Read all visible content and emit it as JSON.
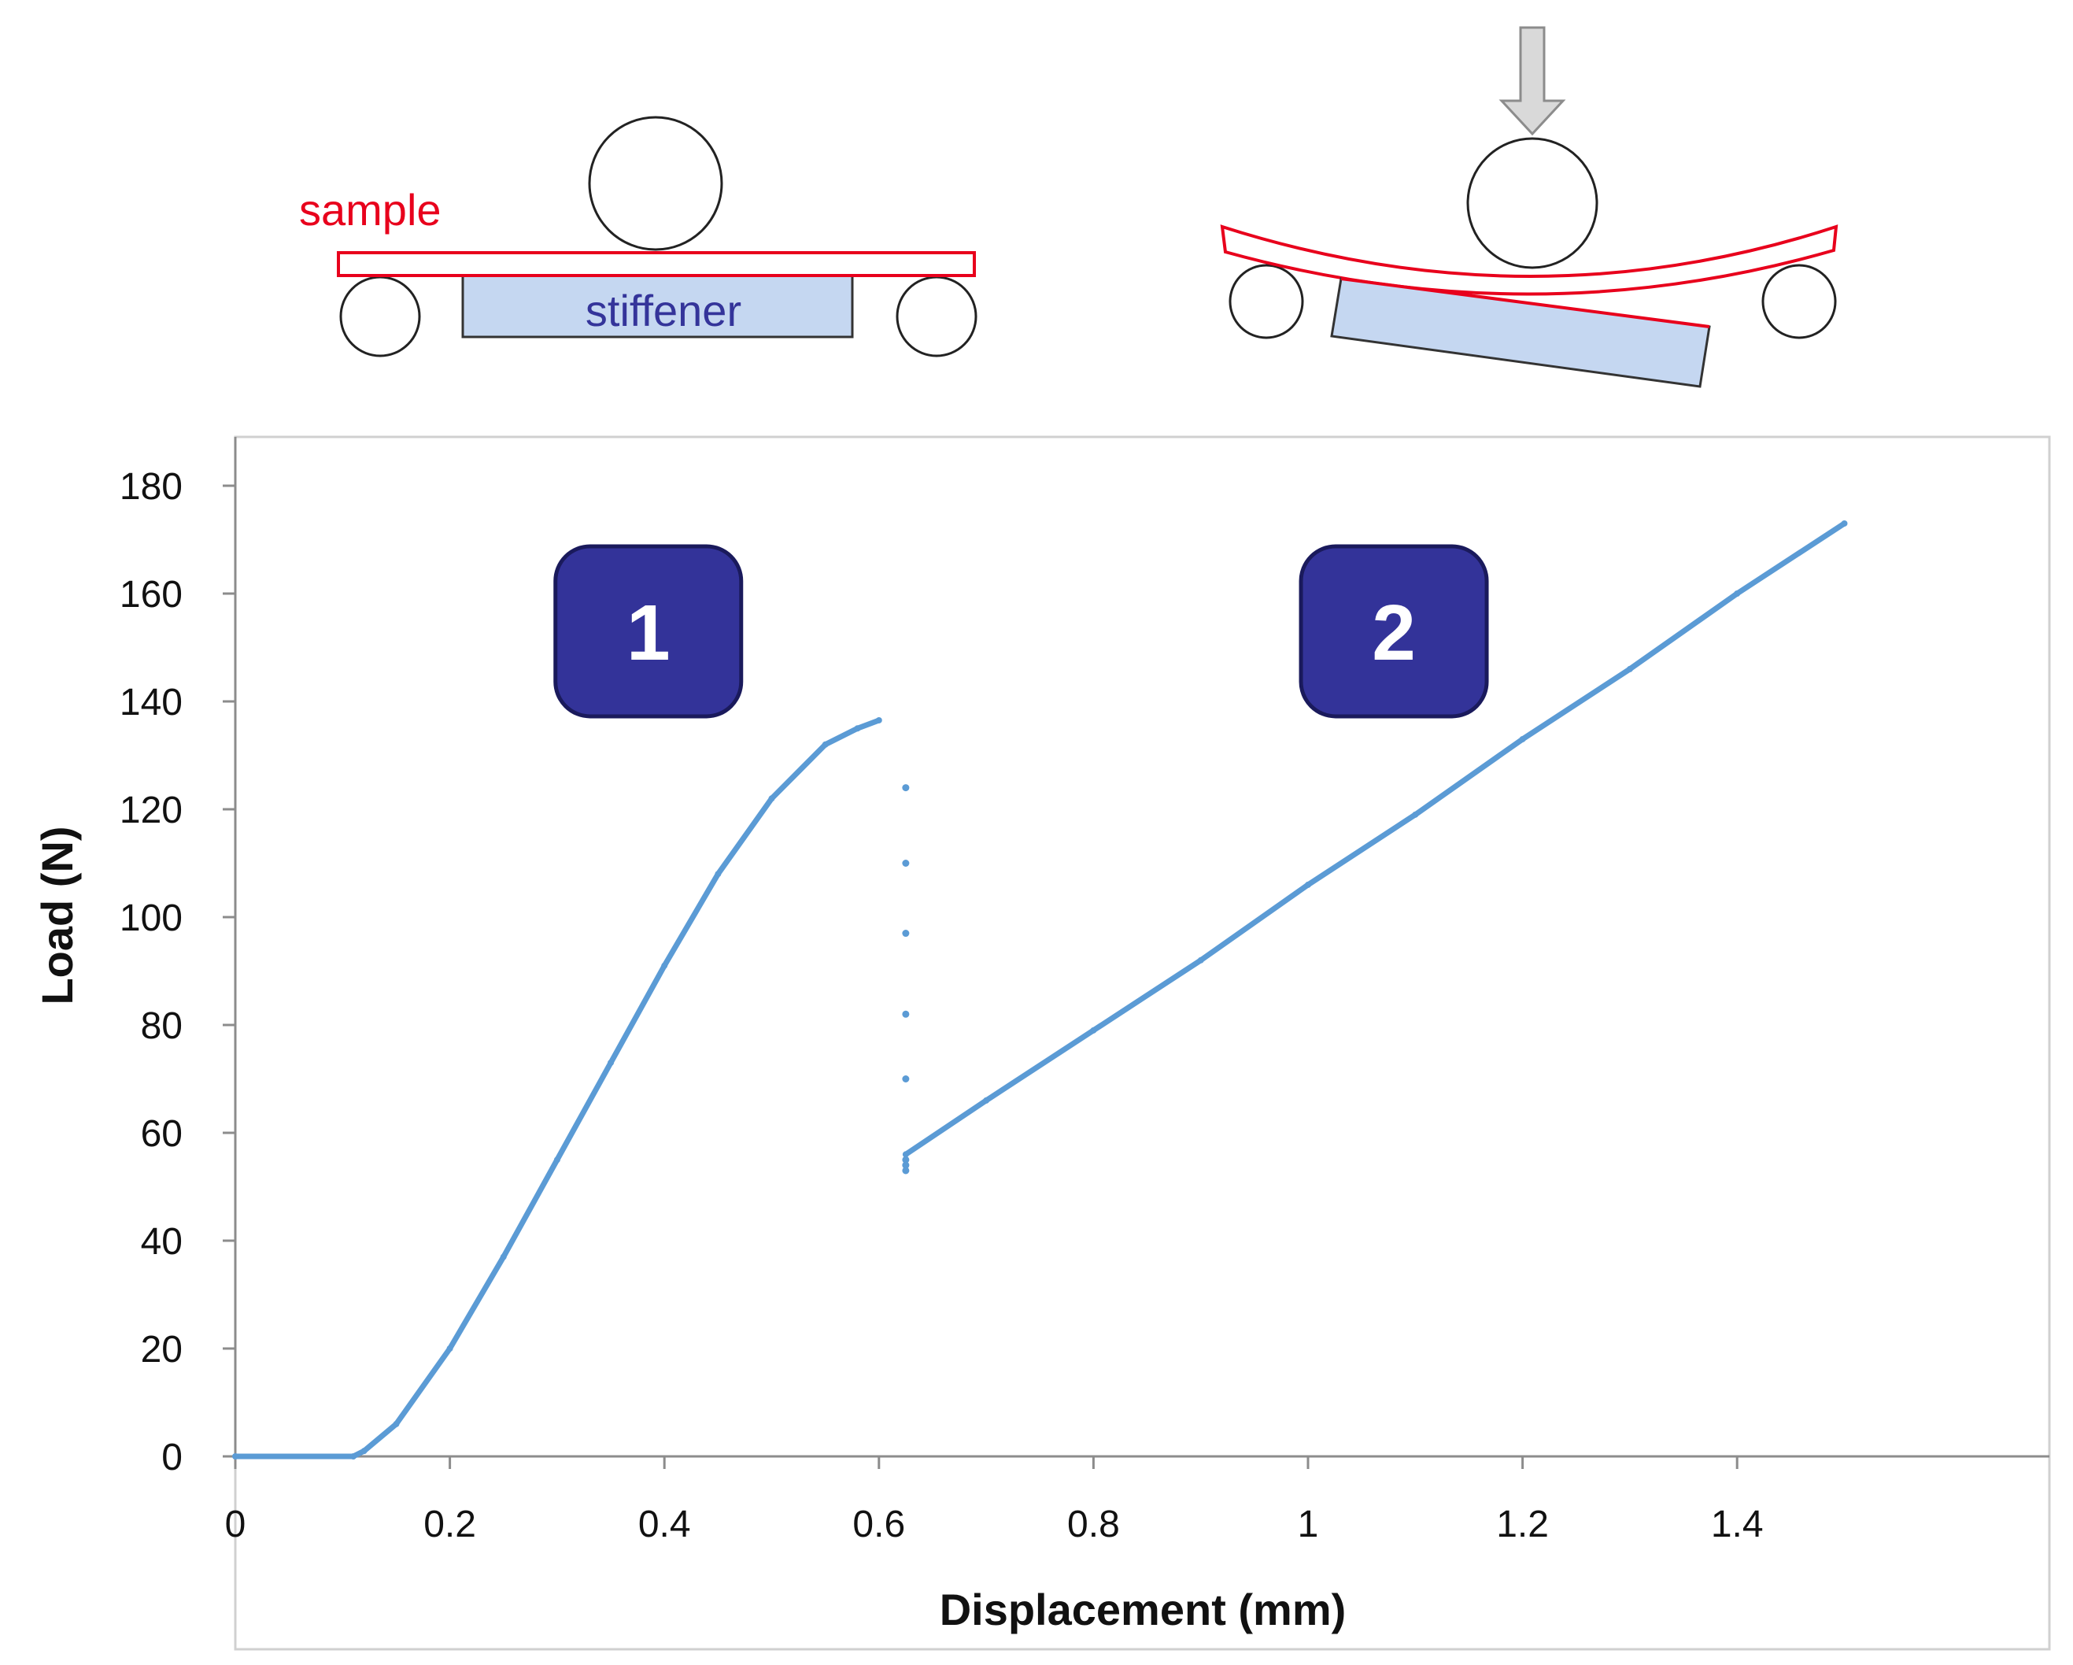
{
  "diagram": {
    "sample_label": "sample",
    "stiffener_label": "stiffener",
    "colors": {
      "sample": "#e8001c",
      "stiffener_fill": "#c5d7f1",
      "stiffener_text": "#34349a",
      "arrow": "#d9d9d9"
    }
  },
  "chart_data": {
    "type": "scatter",
    "xlabel": "Displacement (mm)",
    "ylabel": "Load (N)",
    "xlim": [
      0,
      1.5
    ],
    "ylim": [
      0,
      180
    ],
    "xticks": [
      0,
      0.2,
      0.4,
      0.6,
      0.8,
      1,
      1.2,
      1.4
    ],
    "xtick_labels": [
      "0",
      "0.2",
      "0.4",
      "0.6",
      "0.8",
      "1",
      "1.2",
      "1.4"
    ],
    "yticks": [
      0,
      20,
      40,
      60,
      80,
      100,
      120,
      140,
      160,
      180
    ],
    "ytick_labels": [
      "0",
      "20",
      "40",
      "60",
      "80",
      "100",
      "120",
      "140",
      "160",
      "180"
    ],
    "grid": false,
    "color": "#5b9bd5",
    "series": [
      {
        "values": [
          [
            0,
            0
          ],
          [
            0.11,
            0
          ],
          [
            0.12,
            1
          ],
          [
            0.15,
            6
          ],
          [
            0.2,
            20
          ],
          [
            0.25,
            37
          ],
          [
            0.3,
            55
          ],
          [
            0.35,
            73
          ],
          [
            0.4,
            91
          ],
          [
            0.45,
            108
          ],
          [
            0.5,
            122
          ],
          [
            0.55,
            132
          ],
          [
            0.58,
            135
          ],
          [
            0.6,
            136.5
          ]
        ]
      },
      {
        "values": [
          [
            0.625,
            124
          ],
          [
            0.625,
            110
          ],
          [
            0.625,
            97
          ],
          [
            0.625,
            82
          ],
          [
            0.625,
            70
          ],
          [
            0.625,
            55
          ],
          [
            0.625,
            54
          ],
          [
            0.625,
            53
          ]
        ]
      },
      {
        "values": [
          [
            0.625,
            56
          ],
          [
            0.7,
            66
          ],
          [
            0.8,
            79
          ],
          [
            0.9,
            92
          ],
          [
            1.0,
            106
          ],
          [
            1.1,
            119
          ],
          [
            1.2,
            133
          ],
          [
            1.3,
            146
          ],
          [
            1.4,
            160
          ],
          [
            1.5,
            173
          ]
        ]
      }
    ],
    "annotations": [
      {
        "text": "1",
        "x": 0.385,
        "y": 153
      },
      {
        "text": "2",
        "x": 1.08,
        "y": 153
      }
    ],
    "badge_color": "#333399"
  }
}
